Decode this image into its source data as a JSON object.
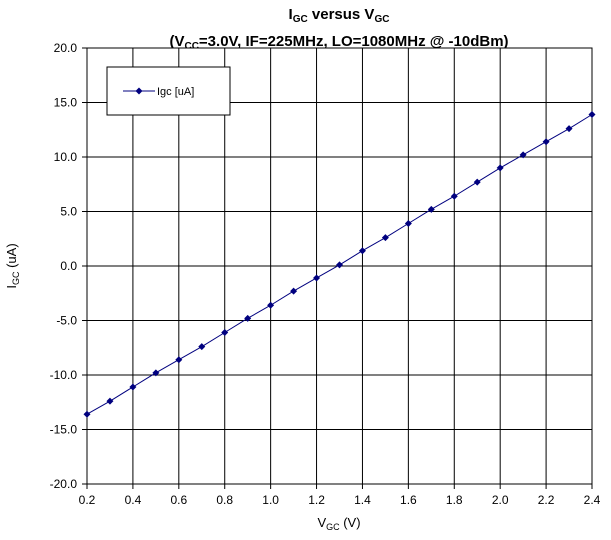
{
  "chart_data": {
    "type": "line",
    "title": {
      "line1": {
        "pre": "I",
        "sub1": "GC",
        "mid": " versus V",
        "sub2": "GC"
      },
      "line2": {
        "pre": "(V",
        "sub": "CC",
        "post": "=3.0V, IF=225MHz, LO=1080MHz @ -10dBm)"
      }
    },
    "xlabel": {
      "pre": "V",
      "sub": "GC",
      "post": " (V)"
    },
    "ylabel": {
      "pre": "I",
      "sub": "GC",
      "post": " (uA)"
    },
    "xlim": [
      0.2,
      2.4
    ],
    "ylim": [
      -20,
      20
    ],
    "x_ticks": [
      "0.2",
      "0.4",
      "0.6",
      "0.8",
      "1.0",
      "1.2",
      "1.4",
      "1.6",
      "1.8",
      "2.0",
      "2.2",
      "2.4"
    ],
    "y_ticks": [
      "-20.0",
      "-15.0",
      "-10.0",
      "-5.0",
      "0.0",
      "5.0",
      "10.0",
      "15.0",
      "20.0"
    ],
    "grid": true,
    "legend_position": "top-left",
    "series": [
      {
        "name": "Igc [uA]",
        "color": "#00007f",
        "marker": "diamond",
        "x": [
          0.2,
          0.3,
          0.4,
          0.5,
          0.6,
          0.7,
          0.8,
          0.9,
          1.0,
          1.1,
          1.2,
          1.3,
          1.4,
          1.5,
          1.6,
          1.7,
          1.8,
          1.9,
          2.0,
          2.1,
          2.2,
          2.3,
          2.4
        ],
        "y": [
          -13.6,
          -12.4,
          -11.1,
          -9.8,
          -8.6,
          -7.4,
          -6.1,
          -4.8,
          -3.6,
          -2.3,
          -1.1,
          0.1,
          1.4,
          2.6,
          3.9,
          5.2,
          6.4,
          7.7,
          9.0,
          10.2,
          11.4,
          12.6,
          13.9
        ]
      }
    ]
  }
}
